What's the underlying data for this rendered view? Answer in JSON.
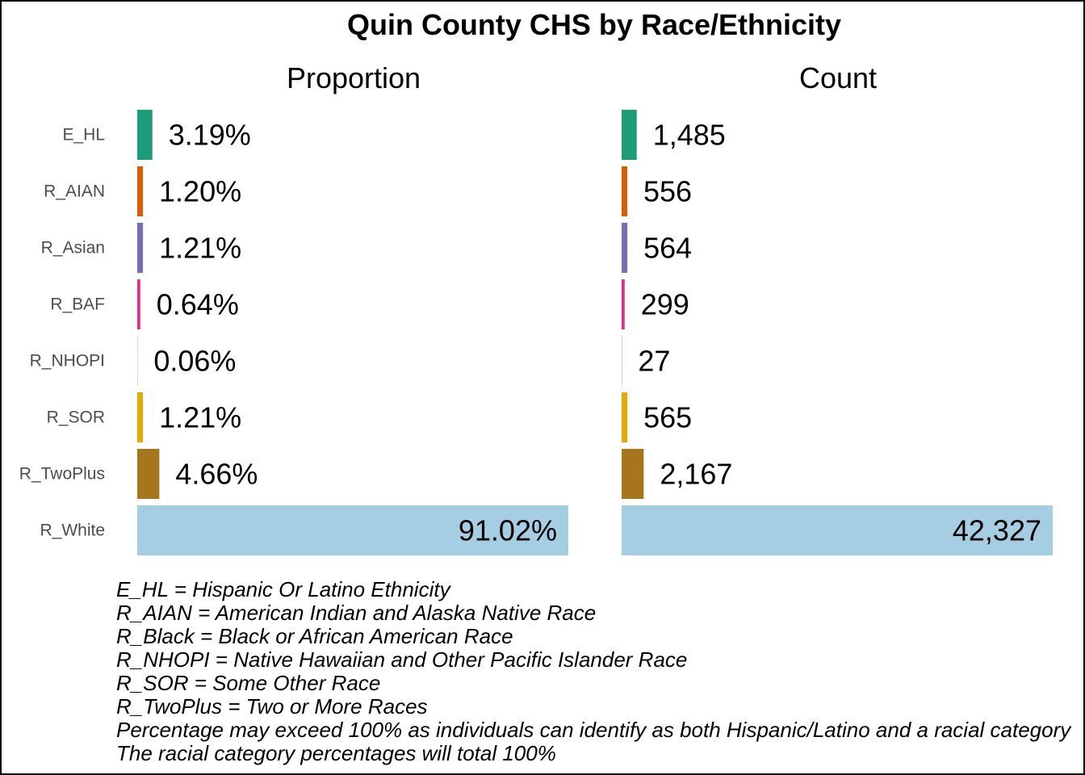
{
  "chart_data": {
    "type": "bar",
    "orientation": "horizontal",
    "title": "Quin County CHS by Race/Ethnicity",
    "categories": [
      "E_HL",
      "R_AIAN",
      "R_Asian",
      "R_BAF",
      "R_NHOPI",
      "R_SOR",
      "R_TwoPlus",
      "R_White"
    ],
    "colors": [
      "#1b9e77",
      "#d95f02",
      "#7570b3",
      "#e7298a",
      "#66a61e",
      "#e6ab02",
      "#a6761d",
      "#a6cee3"
    ],
    "panels": [
      {
        "title": "Proportion",
        "values": [
          3.19,
          1.2,
          1.21,
          0.64,
          0.06,
          1.21,
          4.66,
          91.02
        ],
        "labels": [
          "3.19%",
          "1.20%",
          "1.21%",
          "0.64%",
          "0.06%",
          "1.21%",
          "4.66%",
          "91.02%"
        ],
        "xlim": [
          0,
          91.02
        ]
      },
      {
        "title": "Count",
        "values": [
          1485,
          556,
          564,
          299,
          27,
          565,
          2167,
          42327
        ],
        "labels": [
          "1,485",
          "556",
          "564",
          "299",
          "27",
          "565",
          "2,167",
          "42,327"
        ],
        "xlim": [
          0,
          42327
        ]
      }
    ],
    "grid": false
  },
  "notes": [
    "E_HL = Hispanic Or Latino Ethnicity",
    "R_AIAN = American Indian and Alaska Native Race",
    "R_Black = Black or African American Race",
    "R_NHOPI = Native Hawaiian and Other Pacific Islander Race",
    "R_SOR = Some Other Race",
    "R_TwoPlus = Two or More Races",
    "Percentage may exceed 100% as individuals can identify as both Hispanic/Latino and a racial category",
    "The racial category percentages will total 100%"
  ]
}
